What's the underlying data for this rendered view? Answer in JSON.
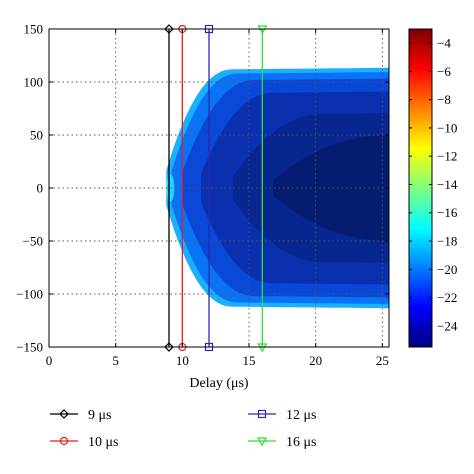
{
  "chart_data": {
    "type": "heatmap",
    "title": "",
    "xlabel": "Delay (μs)",
    "ylabel": "",
    "xlim": [
      0,
      25.5
    ],
    "ylim": [
      -150,
      150
    ],
    "x_ticks": [
      "0",
      "5",
      "10",
      "15",
      "20",
      "25"
    ],
    "x_tick_values": [
      0,
      5,
      10,
      15,
      20,
      25
    ],
    "y_ticks": [
      "150",
      "100",
      "50",
      "0",
      "−50",
      "−100",
      "−150"
    ],
    "y_tick_values": [
      150,
      100,
      50,
      0,
      -50,
      -100,
      -150
    ],
    "grid": true,
    "colorbar": {
      "range": [
        -25.5,
        -3
      ],
      "ticks": [
        "−4",
        "−6",
        "−8",
        "−10",
        "−12",
        "−14",
        "−16",
        "−18",
        "−20",
        "−22",
        "−24"
      ],
      "tick_values": [
        -4,
        -6,
        -8,
        -10,
        -12,
        -14,
        -16,
        -18,
        -20,
        -22,
        -24
      ],
      "colormap": "jet"
    },
    "field": {
      "description_free": true,
      "onset_delay": 8.8,
      "boundary_y": 110,
      "levels": [
        {
          "value": -17,
          "color": "#1ab0ff"
        },
        {
          "value": -20,
          "color": "#0a72f5"
        },
        {
          "value": -22,
          "color": "#0a48d8"
        },
        {
          "value": -23,
          "color": "#0a30b0"
        },
        {
          "value": -24,
          "color": "#082690"
        },
        {
          "value": -25,
          "color": "#061c70"
        }
      ]
    },
    "series": [
      {
        "name": "9 μs",
        "x": [
          9,
          9
        ],
        "y": [
          -150,
          150
        ],
        "color": "#000000",
        "marker": "diamond"
      },
      {
        "name": "10 μs",
        "x": [
          10,
          10
        ],
        "y": [
          -150,
          150
        ],
        "color": "#e02020",
        "marker": "circle"
      },
      {
        "name": "12 μs",
        "x": [
          12,
          12
        ],
        "y": [
          -150,
          150
        ],
        "color": "#2a2ab0",
        "marker": "square"
      },
      {
        "name": "16 μs",
        "x": [
          16,
          16
        ],
        "y": [
          -150,
          150
        ],
        "color": "#33dd33",
        "marker": "triangle-down"
      }
    ],
    "legend": {
      "placement": "bottom",
      "columns": 2
    }
  }
}
